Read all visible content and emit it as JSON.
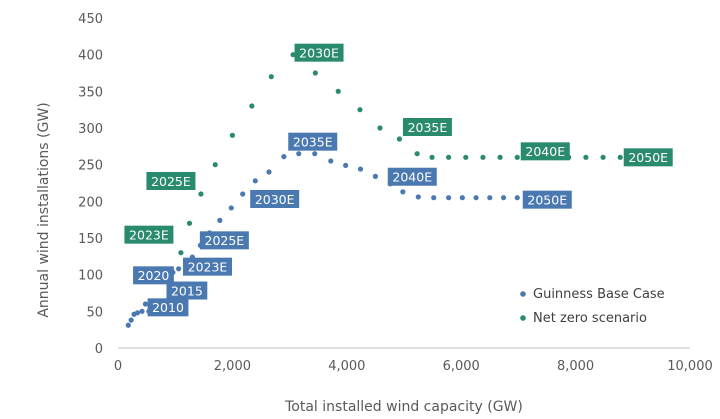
{
  "chart_data": {
    "type": "scatter",
    "title": "",
    "xlabel": "Total installed wind capacity (GW)",
    "ylabel": "Annual wind installations (GW)",
    "xlim": [
      0,
      10000
    ],
    "ylim": [
      0,
      450
    ],
    "x_ticks": [
      0,
      2000,
      4000,
      6000,
      8000,
      10000
    ],
    "x_tick_labels": [
      "0",
      "2,000",
      "4,000",
      "6,000",
      "8,000",
      "10,000"
    ],
    "y_ticks": [
      0,
      50,
      100,
      150,
      200,
      250,
      300,
      350,
      400,
      450
    ],
    "y_tick_labels": [
      "0",
      "50",
      "100",
      "150",
      "200",
      "250",
      "300",
      "350",
      "400",
      "450"
    ],
    "grid": false,
    "legend_position": "bottom-right",
    "series": [
      {
        "name": "Guinness Base Case",
        "color": "#4a78b0",
        "points": [
          [
            180,
            31
          ],
          [
            230,
            38
          ],
          [
            280,
            46
          ],
          [
            340,
            48
          ],
          [
            420,
            50
          ],
          [
            480,
            60
          ],
          [
            540,
            50
          ],
          [
            600,
            52
          ],
          [
            680,
            62
          ],
          [
            760,
            95
          ],
          [
            860,
            99
          ],
          [
            960,
            103
          ],
          [
            1060,
            108
          ],
          [
            1180,
            115
          ],
          [
            1300,
            124
          ],
          [
            1440,
            140
          ],
          [
            1600,
            157
          ],
          [
            1780,
            174
          ],
          [
            1980,
            191
          ],
          [
            2180,
            210
          ],
          [
            2400,
            228
          ],
          [
            2640,
            240
          ],
          [
            2900,
            261
          ],
          [
            3160,
            265
          ],
          [
            3440,
            265
          ],
          [
            3720,
            255
          ],
          [
            3980,
            249
          ],
          [
            4240,
            244
          ],
          [
            4500,
            234
          ],
          [
            4760,
            224
          ],
          [
            4980,
            213
          ],
          [
            5250,
            206
          ],
          [
            5520,
            205
          ],
          [
            5780,
            205
          ],
          [
            6020,
            205
          ],
          [
            6260,
            205
          ],
          [
            6500,
            205
          ],
          [
            6740,
            205
          ],
          [
            6980,
            205
          ]
        ],
        "labels": [
          {
            "text": "2010",
            "x": 420,
            "y": 50
          },
          {
            "text": "2015",
            "x": 680,
            "y": 62
          },
          {
            "text": "2020",
            "x": 760,
            "y": 95
          },
          {
            "text": "2023E",
            "x": 1180,
            "y": 115
          },
          {
            "text": "2025E",
            "x": 1440,
            "y": 140
          },
          {
            "text": "2030E",
            "x": 2180,
            "y": 210
          },
          {
            "text": "2035E",
            "x": 3160,
            "y": 265
          },
          {
            "text": "2040E",
            "x": 4760,
            "y": 224
          },
          {
            "text": "2050E",
            "x": 6980,
            "y": 205
          }
        ]
      },
      {
        "name": "Net zero scenario",
        "color": "#2a8a6e",
        "points": [
          [
            1100,
            130
          ],
          [
            1250,
            170
          ],
          [
            1450,
            210
          ],
          [
            1700,
            250
          ],
          [
            2000,
            290
          ],
          [
            2340,
            330
          ],
          [
            2680,
            370
          ],
          [
            3060,
            400
          ],
          [
            3450,
            375
          ],
          [
            3850,
            350
          ],
          [
            4230,
            325
          ],
          [
            4580,
            300
          ],
          [
            4920,
            285
          ],
          [
            5230,
            265
          ],
          [
            5490,
            260
          ],
          [
            5780,
            260
          ],
          [
            6080,
            260
          ],
          [
            6380,
            260
          ],
          [
            6680,
            260
          ],
          [
            6980,
            260
          ],
          [
            7280,
            260
          ],
          [
            7580,
            260
          ],
          [
            7880,
            260
          ],
          [
            8180,
            260
          ],
          [
            8480,
            260
          ],
          [
            8780,
            260
          ]
        ],
        "labels": [
          {
            "text": "2023E",
            "x": 1100,
            "y": 130
          },
          {
            "text": "2025E",
            "x": 1450,
            "y": 210
          },
          {
            "text": "2030E",
            "x": 3060,
            "y": 400
          },
          {
            "text": "2035E",
            "x": 4920,
            "y": 285
          },
          {
            "text": "2040E",
            "x": 6980,
            "y": 260
          },
          {
            "text": "2050E",
            "x": 8780,
            "y": 260
          }
        ]
      }
    ]
  }
}
